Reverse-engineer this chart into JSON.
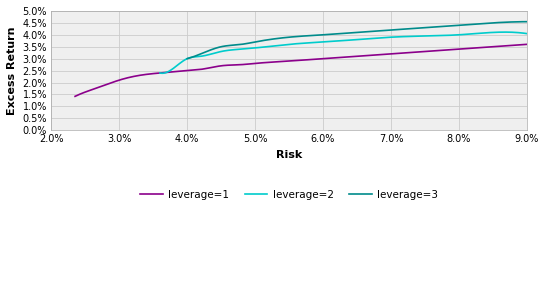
{
  "title": "",
  "xlabel": "Risk",
  "ylabel": "Excess Return",
  "xlim": [
    0.02,
    0.09
  ],
  "ylim": [
    0.0,
    0.05
  ],
  "xticks": [
    0.02,
    0.03,
    0.04,
    0.05,
    0.06,
    0.07,
    0.08,
    0.09
  ],
  "yticks": [
    0.0,
    0.005,
    0.01,
    0.015,
    0.02,
    0.025,
    0.03,
    0.035,
    0.04,
    0.045,
    0.05
  ],
  "lev1_color": "#8B008B",
  "lev2_color": "#00CCCC",
  "lev3_color": "#008B8B",
  "lev1_x": [
    0.0235,
    0.025,
    0.027,
    0.03,
    0.033,
    0.036,
    0.038,
    0.04,
    0.042,
    0.045,
    0.048,
    0.05,
    0.055,
    0.06,
    0.065,
    0.07,
    0.075,
    0.08,
    0.085,
    0.09
  ],
  "lev1_y": [
    0.0142,
    0.016,
    0.018,
    0.021,
    0.023,
    0.024,
    0.0245,
    0.025,
    0.0255,
    0.027,
    0.0275,
    0.028,
    0.029,
    0.03,
    0.031,
    0.032,
    0.033,
    0.034,
    0.035,
    0.036
  ],
  "lev2_x": [
    0.036,
    0.038,
    0.04,
    0.042,
    0.045,
    0.048,
    0.05,
    0.055,
    0.06,
    0.065,
    0.07,
    0.075,
    0.08,
    0.085,
    0.09
  ],
  "lev2_y": [
    0.024,
    0.026,
    0.03,
    0.031,
    0.033,
    0.034,
    0.0345,
    0.036,
    0.037,
    0.038,
    0.039,
    0.0395,
    0.04,
    0.041,
    0.0405
  ],
  "lev3_x": [
    0.04,
    0.042,
    0.045,
    0.048,
    0.05,
    0.055,
    0.06,
    0.065,
    0.07,
    0.075,
    0.08,
    0.085,
    0.09
  ],
  "lev3_y": [
    0.03,
    0.032,
    0.035,
    0.036,
    0.037,
    0.039,
    0.04,
    0.041,
    0.042,
    0.043,
    0.044,
    0.045,
    0.0455
  ],
  "legend_labels": [
    "leverage=1",
    "leverage=2",
    "leverage=3"
  ],
  "bg_color": "#EFEFEF",
  "grid_color": "#CCCCCC",
  "plot_bg": "#EFEFEF"
}
